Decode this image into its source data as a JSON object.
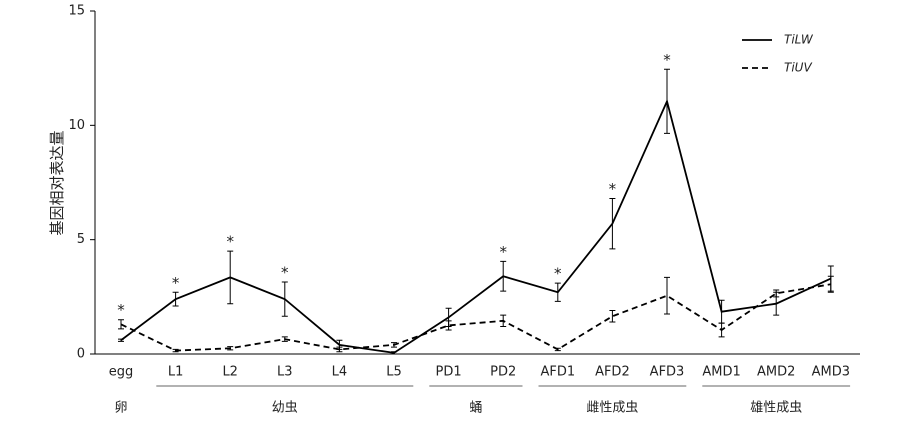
{
  "chart_data": {
    "type": "line",
    "y_label": "基因相对表达量",
    "categories": [
      "egg",
      "L1",
      "L2",
      "L3",
      "L4",
      "L5",
      "PD1",
      "PD2",
      "AFD1",
      "AFD2",
      "AFD3",
      "AMD1",
      "AMD2",
      "AMD3"
    ],
    "groups": [
      {
        "label": "卵",
        "categories": [
          "egg"
        ]
      },
      {
        "label": "幼虫",
        "categories": [
          "L1",
          "L2",
          "L3",
          "L4",
          "L5"
        ]
      },
      {
        "label": "蛹",
        "categories": [
          "PD1",
          "PD2"
        ]
      },
      {
        "label": "雌性成虫",
        "categories": [
          "AFD1",
          "AFD2",
          "AFD3"
        ]
      },
      {
        "label": "雄性成虫",
        "categories": [
          "AMD1",
          "AMD2",
          "AMD3"
        ]
      }
    ],
    "series": [
      {
        "name": "TiLW",
        "color": "#000000",
        "dash": false,
        "values": [
          0.6,
          2.4,
          3.35,
          2.4,
          0.4,
          0.05,
          1.6,
          3.4,
          2.7,
          5.7,
          11.05,
          1.85,
          2.2,
          3.3
        ],
        "errors": [
          0.05,
          0.3,
          1.15,
          0.75,
          0.2,
          0.05,
          0.4,
          0.65,
          0.4,
          1.1,
          1.4,
          0.5,
          0.5,
          0.55
        ]
      },
      {
        "name": "TiUV",
        "color": "#000000",
        "dash": true,
        "values": [
          1.3,
          0.15,
          0.25,
          0.65,
          0.2,
          0.4,
          1.25,
          1.45,
          0.2,
          1.65,
          2.55,
          1.05,
          2.65,
          3.05
        ],
        "errors": [
          0.2,
          0.05,
          0.07,
          0.1,
          0.1,
          0.1,
          0.2,
          0.25,
          0.05,
          0.25,
          0.8,
          0.3,
          0.15,
          0.35
        ]
      }
    ],
    "significance": [
      "*",
      "*",
      "*",
      "*",
      null,
      null,
      null,
      "*",
      "*",
      "*",
      "*",
      null,
      null,
      null
    ],
    "ylim": [
      0,
      15
    ],
    "yticks": [
      0,
      5,
      10,
      15
    ],
    "legend": "upper right"
  }
}
